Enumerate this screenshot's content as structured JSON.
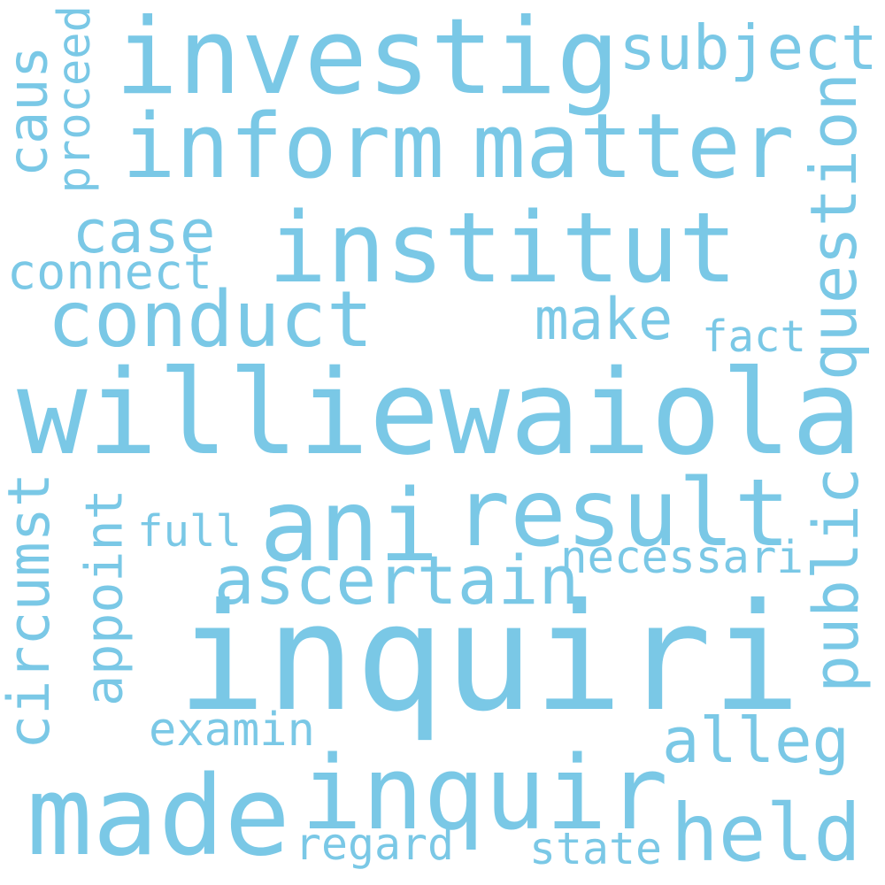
{
  "text_color": "#7ac8e6",
  "background_color": "#ffffff",
  "words": [
    {
      "key": "williewaiola",
      "text": "williewaiola"
    },
    {
      "key": "inquiri",
      "text": "inquiri"
    },
    {
      "key": "investig",
      "text": "investig"
    },
    {
      "key": "inform",
      "text": "inform"
    },
    {
      "key": "matter",
      "text": "matter"
    },
    {
      "key": "institut",
      "text": "institut"
    },
    {
      "key": "result",
      "text": "result"
    },
    {
      "key": "ani",
      "text": "ani"
    },
    {
      "key": "inquir",
      "text": "inquir"
    },
    {
      "key": "made",
      "text": "made"
    },
    {
      "key": "conduct",
      "text": "conduct"
    },
    {
      "key": "held",
      "text": "held"
    },
    {
      "key": "subject",
      "text": "subject"
    },
    {
      "key": "ascertain",
      "text": "ascertain"
    },
    {
      "key": "question",
      "text": "question"
    },
    {
      "key": "public",
      "text": "public"
    },
    {
      "key": "alleg",
      "text": "alleg"
    },
    {
      "key": "make",
      "text": "make"
    },
    {
      "key": "case",
      "text": "case"
    },
    {
      "key": "caus",
      "text": "caus"
    },
    {
      "key": "circumst",
      "text": "circumst"
    },
    {
      "key": "appoint",
      "text": "appoint"
    },
    {
      "key": "connect",
      "text": "connect"
    },
    {
      "key": "necessari",
      "text": "necessari"
    },
    {
      "key": "examin",
      "text": "examin"
    },
    {
      "key": "regard",
      "text": "regard"
    },
    {
      "key": "state",
      "text": "state"
    },
    {
      "key": "full",
      "text": "full"
    },
    {
      "key": "fact",
      "text": "fact"
    },
    {
      "key": "proceed",
      "text": "proceed"
    }
  ]
}
